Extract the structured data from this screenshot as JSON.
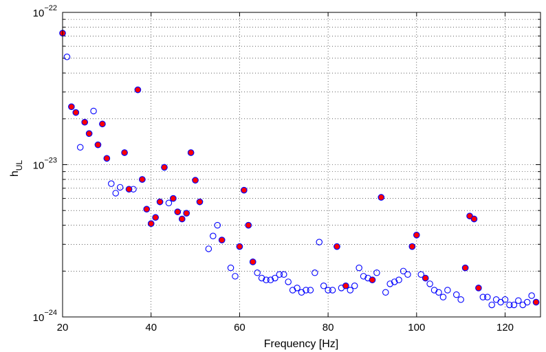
{
  "chart_data": {
    "type": "scatter",
    "xlabel": "Frequency [Hz]",
    "ylabel": "h",
    "ylabel_subscript": "UL",
    "xlim": [
      20,
      128
    ],
    "ylim": [
      1e-24,
      1e-22
    ],
    "yscale": "log",
    "grid": true,
    "x_ticks": [
      20,
      40,
      60,
      80,
      100,
      120
    ],
    "x_tick_labels": [
      "20",
      "40",
      "60",
      "80",
      "100",
      "120"
    ],
    "y_ticks": [
      1e-24,
      1e-23,
      1e-22
    ],
    "y_tick_labels": [
      {
        "base": "10",
        "exp": "−24"
      },
      {
        "base": "10",
        "exp": "−23"
      },
      {
        "base": "10",
        "exp": "−22"
      }
    ],
    "colors": {
      "marker_edge": "#0000ff",
      "marker_fill": "#ff0000"
    },
    "series": [
      {
        "marker": "open-circle",
        "points": [
          [
            20,
            7.3e-23
          ],
          [
            21,
            5.1e-23
          ],
          [
            22,
            2.4e-23
          ],
          [
            23,
            2.2e-23
          ],
          [
            24,
            1.3e-23
          ],
          [
            25,
            1.9e-23
          ],
          [
            26,
            1.6e-23
          ],
          [
            27,
            2.25e-23
          ],
          [
            28,
            1.35e-23
          ],
          [
            29,
            1.85e-23
          ],
          [
            30,
            1.1e-23
          ],
          [
            31,
            7.5e-24
          ],
          [
            32,
            6.5e-24
          ],
          [
            33,
            7.1e-24
          ],
          [
            34,
            1.2e-23
          ],
          [
            35,
            6.9e-24
          ],
          [
            36,
            6.9e-24
          ],
          [
            37,
            3.1e-23
          ],
          [
            38,
            8e-24
          ],
          [
            39,
            5.1e-24
          ],
          [
            40,
            4.1e-24
          ],
          [
            41,
            4.5e-24
          ],
          [
            42,
            5.7e-24
          ],
          [
            43,
            9.6e-24
          ],
          [
            44,
            5.6e-24
          ],
          [
            45,
            6e-24
          ],
          [
            46,
            4.9e-24
          ],
          [
            47,
            4.4e-24
          ],
          [
            48,
            4.8e-24
          ],
          [
            49,
            1.2e-23
          ],
          [
            50,
            7.9e-24
          ],
          [
            51,
            5.7e-24
          ],
          [
            53,
            2.8e-24
          ],
          [
            54,
            3.4e-24
          ],
          [
            55,
            4e-24
          ],
          [
            56,
            3.2e-24
          ],
          [
            58,
            2.1e-24
          ],
          [
            59,
            1.85e-24
          ],
          [
            60,
            2.9e-24
          ],
          [
            61,
            6.8e-24
          ],
          [
            62,
            4e-24
          ],
          [
            63,
            2.3e-24
          ],
          [
            64,
            1.95e-24
          ],
          [
            65,
            1.8e-24
          ],
          [
            66,
            1.75e-24
          ],
          [
            67,
            1.75e-24
          ],
          [
            68,
            1.8e-24
          ],
          [
            69,
            1.9e-24
          ],
          [
            70,
            1.9e-24
          ],
          [
            71,
            1.7e-24
          ],
          [
            72,
            1.5e-24
          ],
          [
            73,
            1.55e-24
          ],
          [
            74,
            1.45e-24
          ],
          [
            75,
            1.5e-24
          ],
          [
            76,
            1.5e-24
          ],
          [
            77,
            1.95e-24
          ],
          [
            78,
            3.1e-24
          ],
          [
            79,
            1.6e-24
          ],
          [
            80,
            1.5e-24
          ],
          [
            81,
            1.5e-24
          ],
          [
            82,
            2.9e-24
          ],
          [
            83,
            1.55e-24
          ],
          [
            84,
            1.6e-24
          ],
          [
            85,
            1.5e-24
          ],
          [
            86,
            1.6e-24
          ],
          [
            87,
            2.1e-24
          ],
          [
            88,
            1.85e-24
          ],
          [
            89,
            1.8e-24
          ],
          [
            90,
            1.75e-24
          ],
          [
            91,
            1.95e-24
          ],
          [
            92,
            6.1e-24
          ],
          [
            93,
            1.45e-24
          ],
          [
            94,
            1.65e-24
          ],
          [
            95,
            1.7e-24
          ],
          [
            96,
            1.75e-24
          ],
          [
            97,
            2e-24
          ],
          [
            98,
            1.9e-24
          ],
          [
            99,
            2.9e-24
          ],
          [
            100,
            3.45e-24
          ],
          [
            101,
            1.9e-24
          ],
          [
            102,
            1.8e-24
          ],
          [
            103,
            1.65e-24
          ],
          [
            104,
            1.5e-24
          ],
          [
            105,
            1.45e-24
          ],
          [
            106,
            1.35e-24
          ],
          [
            107,
            1.5e-24
          ],
          [
            109,
            1.4e-24
          ],
          [
            110,
            1.3e-24
          ],
          [
            111,
            2.1e-24
          ],
          [
            112,
            4.6e-24
          ],
          [
            113,
            4.4e-24
          ],
          [
            114,
            1.55e-24
          ],
          [
            115,
            1.35e-24
          ],
          [
            116,
            1.35e-24
          ],
          [
            117,
            1.2e-24
          ],
          [
            118,
            1.3e-24
          ],
          [
            119,
            1.25e-24
          ],
          [
            120,
            1.3e-24
          ],
          [
            121,
            1.2e-24
          ],
          [
            122,
            1.2e-24
          ],
          [
            123,
            1.28e-24
          ],
          [
            124,
            1.2e-24
          ],
          [
            125,
            1.25e-24
          ],
          [
            126,
            1.38e-24
          ],
          [
            127,
            1.25e-24
          ]
        ]
      },
      {
        "marker": "filled-circle",
        "points": [
          [
            20,
            7.3e-23
          ],
          [
            22,
            2.4e-23
          ],
          [
            23,
            2.2e-23
          ],
          [
            25,
            1.9e-23
          ],
          [
            26,
            1.6e-23
          ],
          [
            28,
            1.35e-23
          ],
          [
            29,
            1.85e-23
          ],
          [
            30,
            1.1e-23
          ],
          [
            34,
            1.2e-23
          ],
          [
            35,
            6.9e-24
          ],
          [
            37,
            3.1e-23
          ],
          [
            38,
            8e-24
          ],
          [
            39,
            5.1e-24
          ],
          [
            40,
            4.1e-24
          ],
          [
            41,
            4.5e-24
          ],
          [
            42,
            5.7e-24
          ],
          [
            43,
            9.6e-24
          ],
          [
            45,
            6e-24
          ],
          [
            46,
            4.9e-24
          ],
          [
            47,
            4.4e-24
          ],
          [
            48,
            4.8e-24
          ],
          [
            49,
            1.2e-23
          ],
          [
            50,
            7.9e-24
          ],
          [
            51,
            5.7e-24
          ],
          [
            56,
            3.2e-24
          ],
          [
            60,
            2.9e-24
          ],
          [
            61,
            6.8e-24
          ],
          [
            62,
            4e-24
          ],
          [
            63,
            2.3e-24
          ],
          [
            82,
            2.9e-24
          ],
          [
            84,
            1.6e-24
          ],
          [
            90,
            1.75e-24
          ],
          [
            92,
            6.1e-24
          ],
          [
            99,
            2.9e-24
          ],
          [
            100,
            3.45e-24
          ],
          [
            102,
            1.8e-24
          ],
          [
            111,
            2.1e-24
          ],
          [
            112,
            4.6e-24
          ],
          [
            113,
            4.4e-24
          ],
          [
            114,
            1.55e-24
          ],
          [
            127,
            1.25e-24
          ]
        ]
      }
    ]
  }
}
